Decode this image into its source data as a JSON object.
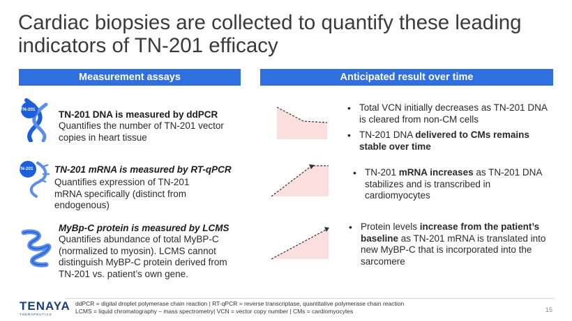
{
  "title": {
    "line1": "Cardiac biopsies are collected to quantify these leading",
    "line2": "indicators of TN-201 efficacy"
  },
  "headers": {
    "left": "Measurement assays",
    "right": "Anticipated result over time"
  },
  "assays": [
    {
      "icon_label": "TN-201",
      "icon": "dna-double-helix-icon",
      "heading": "TN-201 DNA is measured by ddPCR",
      "body_lines": [
        "Quantifies the number of TN-201 vector",
        "copies in heart tissue"
      ]
    },
    {
      "icon_label": "TN-201",
      "icon": "rna-strand-icon",
      "heading": "TN-201 mRNA is measured by RT-qPCR",
      "body_lines": [
        "Quantifies expression of TN-201",
        "mRNA specifically (distinct from",
        "endogenous)"
      ]
    },
    {
      "icon": "protein-ribbon-icon",
      "heading": "MyBp-C protein is measured by LCMS",
      "body_lines": [
        "Quantifies abundance of total MyBP-C",
        "(normalized to myosin).  LCMS cannot",
        "distinguish MyBP-C protein derived from",
        "TN-201 vs. patient’s own gene."
      ]
    }
  ],
  "results": [
    {
      "bullets": [
        {
          "line1": "Total VCN initially decreases as TN-201 DNA",
          "line2": "is cleared from non-CM cells"
        },
        {
          "line1_plain": "TN-201 DNA ",
          "line1_bold": "delivered to CMs remains",
          "line2_bold": "stable over time"
        }
      ]
    },
    {
      "bullets": [
        {
          "plain1": "TN-201 ",
          "bold1": "mRNA increases",
          "plain2": " as TN-201 DNA",
          "line2": "stabilizes and is transcribed in",
          "line3": "cardiomyocytes"
        }
      ]
    },
    {
      "bullets": [
        {
          "plain1": "Protein levels ",
          "bold1": "increase from the patient’s",
          "bold2": "baseline",
          "plain2": " as TN-201 mRNA is translated into",
          "line3": "new MyBP-C that is incorporated into the",
          "line4": "sarcomere"
        }
      ]
    }
  ],
  "colors": {
    "accent": "#2f6fe0",
    "trend_fill": "#fbdede",
    "icon_blue": "#1c5fd8",
    "logo": "#1a3d7c"
  },
  "footer": {
    "logo_text": "TENAYA",
    "logo_sub": "THERAPEUTICS",
    "footnote_line1": "ddPCR = digital droplet polymerase chain reaction | RT-qPCR = reverse transcriptase, quantitative polymerase chain reaction",
    "footnote_line2": "LCMS = liquid chromatography – mass spectrometry| VCN = vector copy number | CMs = cardiomyocytes",
    "page_number": "15"
  }
}
